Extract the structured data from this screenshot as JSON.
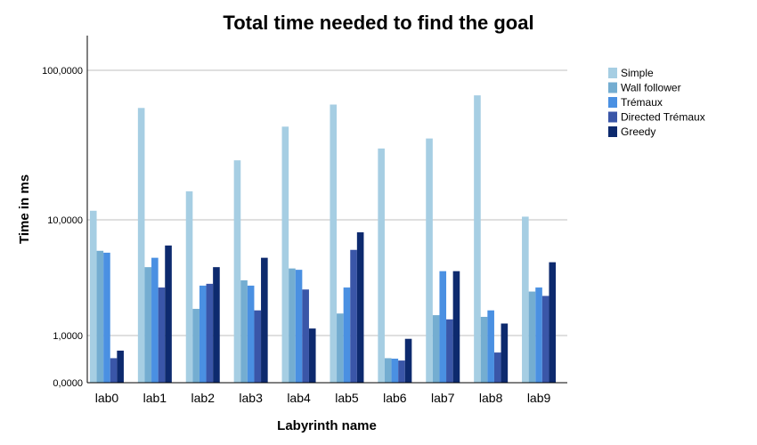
{
  "chart_data": {
    "type": "bar",
    "title": "Total time needed to find the goal",
    "xlabel": "Labyrinth name",
    "ylabel": "Time in ms",
    "y_scale": "log",
    "ylim": [
      0,
      180
    ],
    "y_ticks": [
      {
        "value": 0,
        "label": "0,0000"
      },
      {
        "value": 1,
        "label": "1,0000"
      },
      {
        "value": 10,
        "label": "10,0000"
      },
      {
        "value": 100,
        "label": "100,0000"
      }
    ],
    "grid": true,
    "legend_position": "right",
    "categories": [
      "lab0",
      "lab1",
      "lab2",
      "lab3",
      "lab4",
      "lab5",
      "lab6",
      "lab7",
      "lab8",
      "lab9"
    ],
    "series": [
      {
        "name": "Simple",
        "color": "#a6cee3",
        "values": [
          11.5,
          56,
          15.5,
          25,
          42,
          59,
          30,
          35,
          68,
          10.5
        ]
      },
      {
        "name": "Wall follower",
        "color": "#74add1",
        "values": [
          5.4,
          3.9,
          1.7,
          3.0,
          3.8,
          1.55,
          0.52,
          1.5,
          1.45,
          2.4
        ]
      },
      {
        "name": "Trémaux",
        "color": "#4a90e2",
        "values": [
          5.2,
          4.7,
          2.7,
          2.7,
          3.7,
          2.6,
          0.51,
          3.6,
          1.65,
          2.6
        ]
      },
      {
        "name": "Directed Trémaux",
        "color": "#3a56a8",
        "values": [
          0.52,
          2.6,
          2.8,
          1.65,
          2.5,
          5.5,
          0.47,
          1.38,
          0.64,
          2.2
        ]
      },
      {
        "name": "Greedy",
        "color": "#0d2a6e",
        "values": [
          0.68,
          6.0,
          3.9,
          4.7,
          1.15,
          7.8,
          0.93,
          3.6,
          1.27,
          4.3
        ]
      }
    ]
  }
}
